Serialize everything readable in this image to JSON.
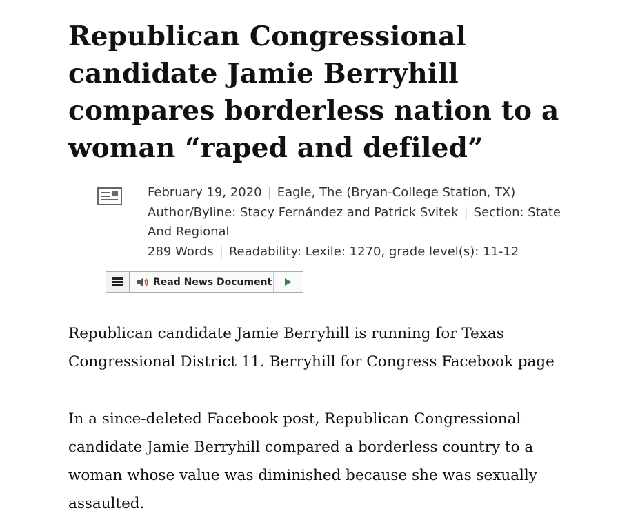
{
  "article": {
    "headline": "Republican Congressional candidate Jamie Berryhill compares borderless nation to a woman “raped and defiled”",
    "date": "February 19, 2020",
    "source": "Eagle, The (Bryan-College Station, TX)",
    "byline": "Author/Byline: Stacy Fernández and Patrick Svitek",
    "section": "Section: State And Regional",
    "words": "289 Words",
    "readability": "Readability: Lexile: 1270, grade level(s): 11-12",
    "paragraphs": [
      "Republican candidate Jamie Berryhill is running for Texas Congressional District 11. Berryhill for Congress Facebook page",
      "In a since-deleted Facebook post, Republican Congressional candidate Jamie Berryhill compared a borderless country to a woman whose value was diminished because she was sexually assaulted."
    ]
  },
  "reader": {
    "label": "Read News Document",
    "menu_icon": "menu-icon",
    "speaker_icon": "speaker-icon",
    "play_icon": "play-icon",
    "play_color": "#2e8b3a",
    "speaker_color": "#d04a2a"
  },
  "meta_separator": "|"
}
